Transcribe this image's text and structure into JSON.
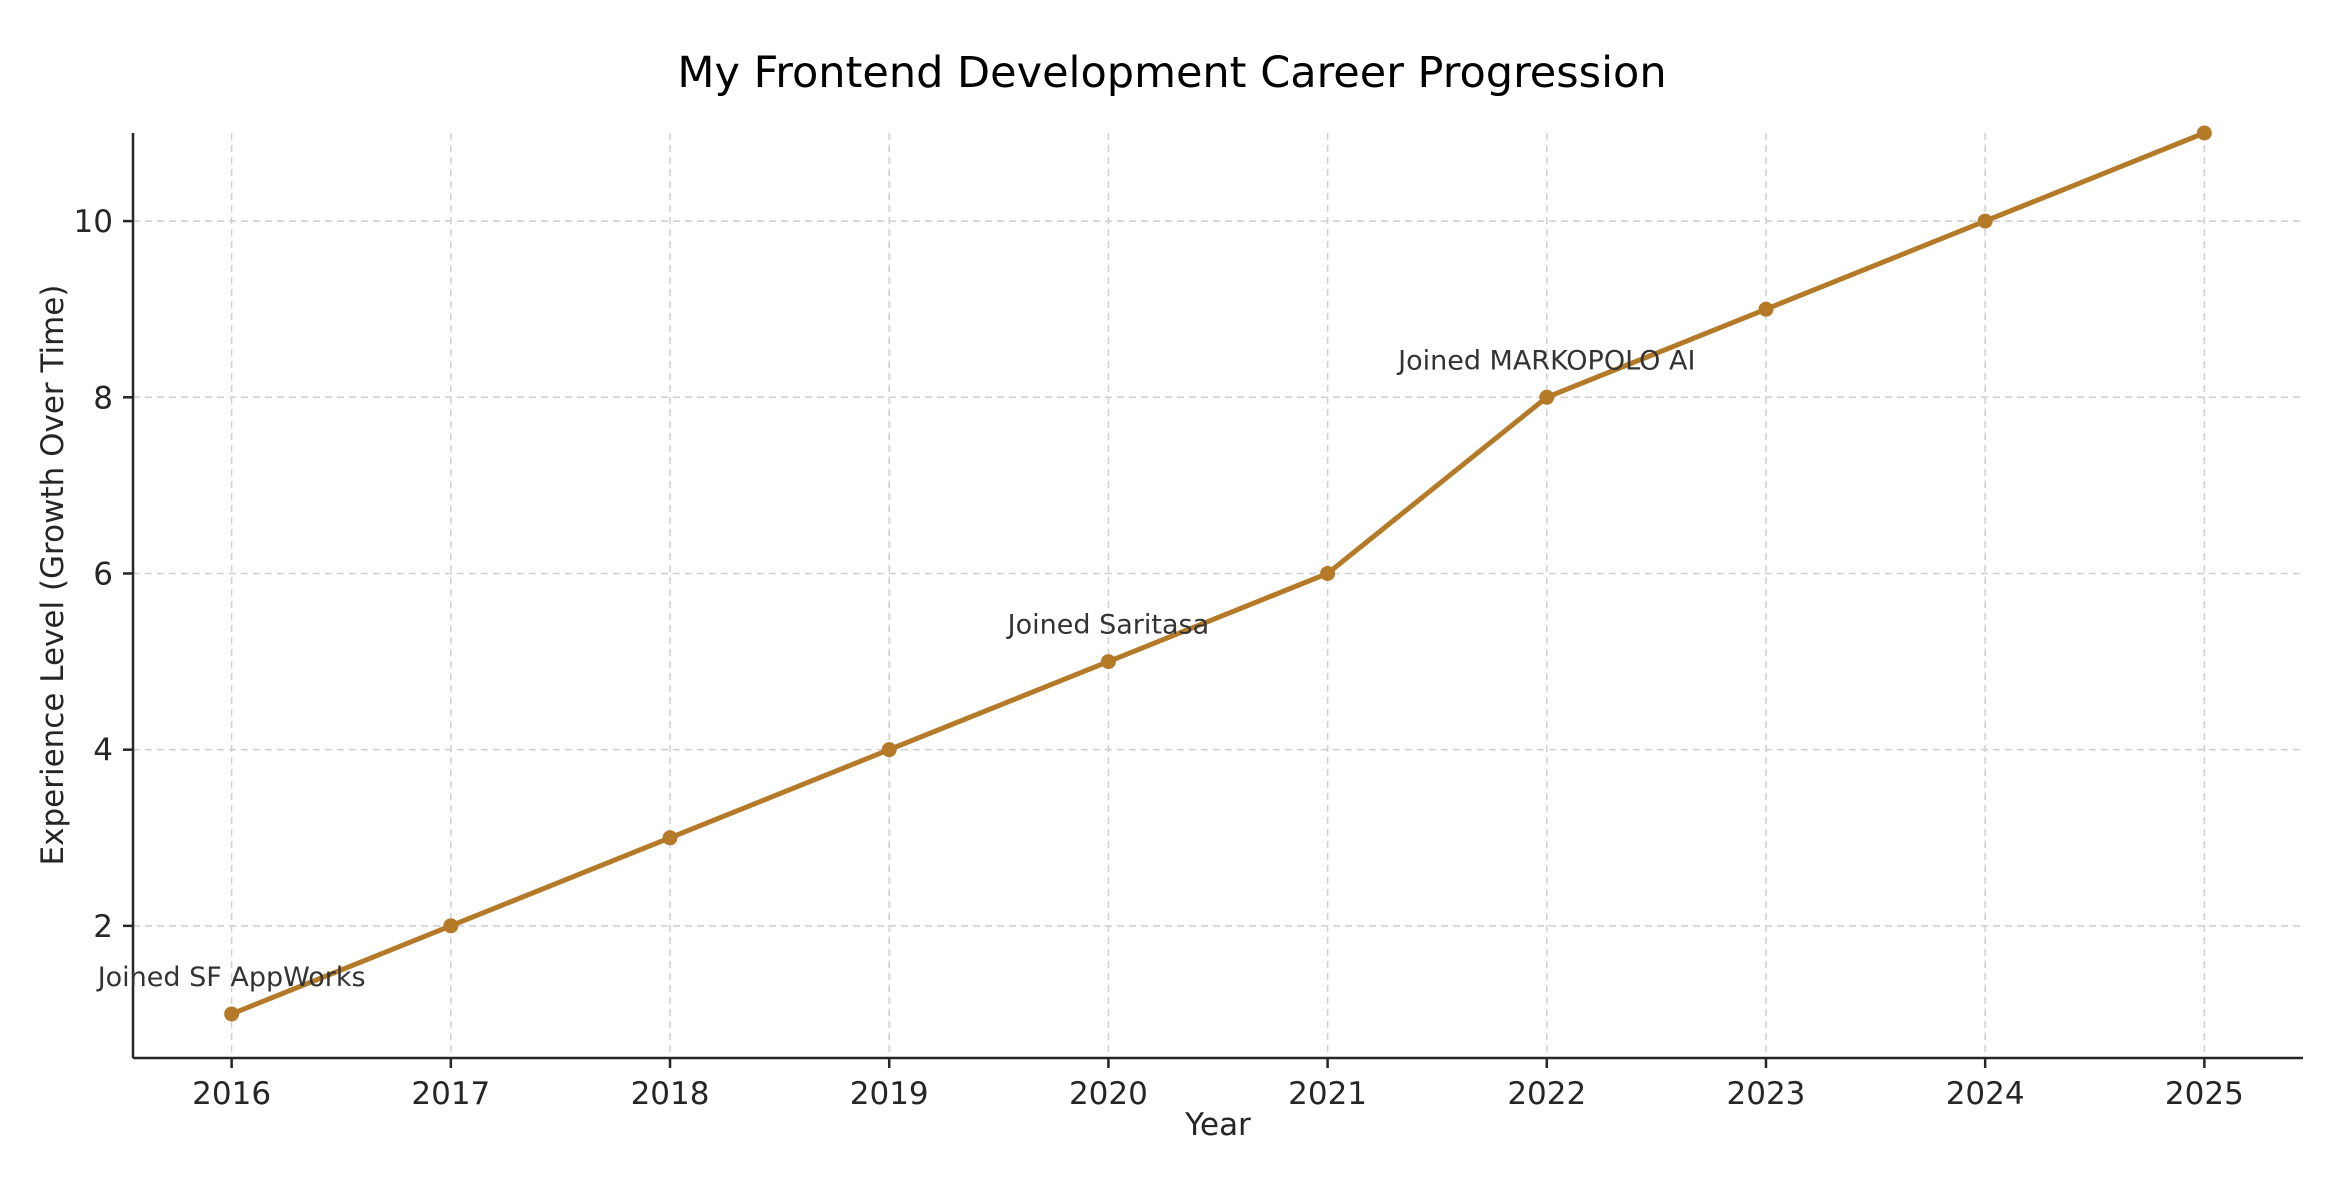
{
  "chart_data": {
    "type": "line",
    "title": "My Frontend Development Career Progression",
    "xlabel": "Year",
    "ylabel": "Experience Level (Growth Over Time)",
    "x": [
      2016,
      2017,
      2018,
      2019,
      2020,
      2021,
      2022,
      2023,
      2024,
      2025
    ],
    "series": [
      {
        "values": [
          1,
          2,
          3,
          4,
          5,
          6,
          8,
          9,
          10,
          11
        ]
      }
    ],
    "xlim": [
      2015.55,
      2025.45
    ],
    "ylim": [
      0.5,
      11
    ],
    "xticks": [
      "2016",
      "2017",
      "2018",
      "2019",
      "2020",
      "2021",
      "2022",
      "2023",
      "2024",
      "2025"
    ],
    "yticks": [
      2,
      4,
      6,
      8,
      10
    ],
    "grid": true,
    "line_color": "#b57a28",
    "annotations": [
      {
        "text": "Joined SF AppWorks",
        "x": 2016,
        "y": 1
      },
      {
        "text": "Joined Saritasa",
        "x": 2020,
        "y": 5
      },
      {
        "text": "Joined MARKOPOLO AI",
        "x": 2022,
        "y": 8
      }
    ]
  }
}
